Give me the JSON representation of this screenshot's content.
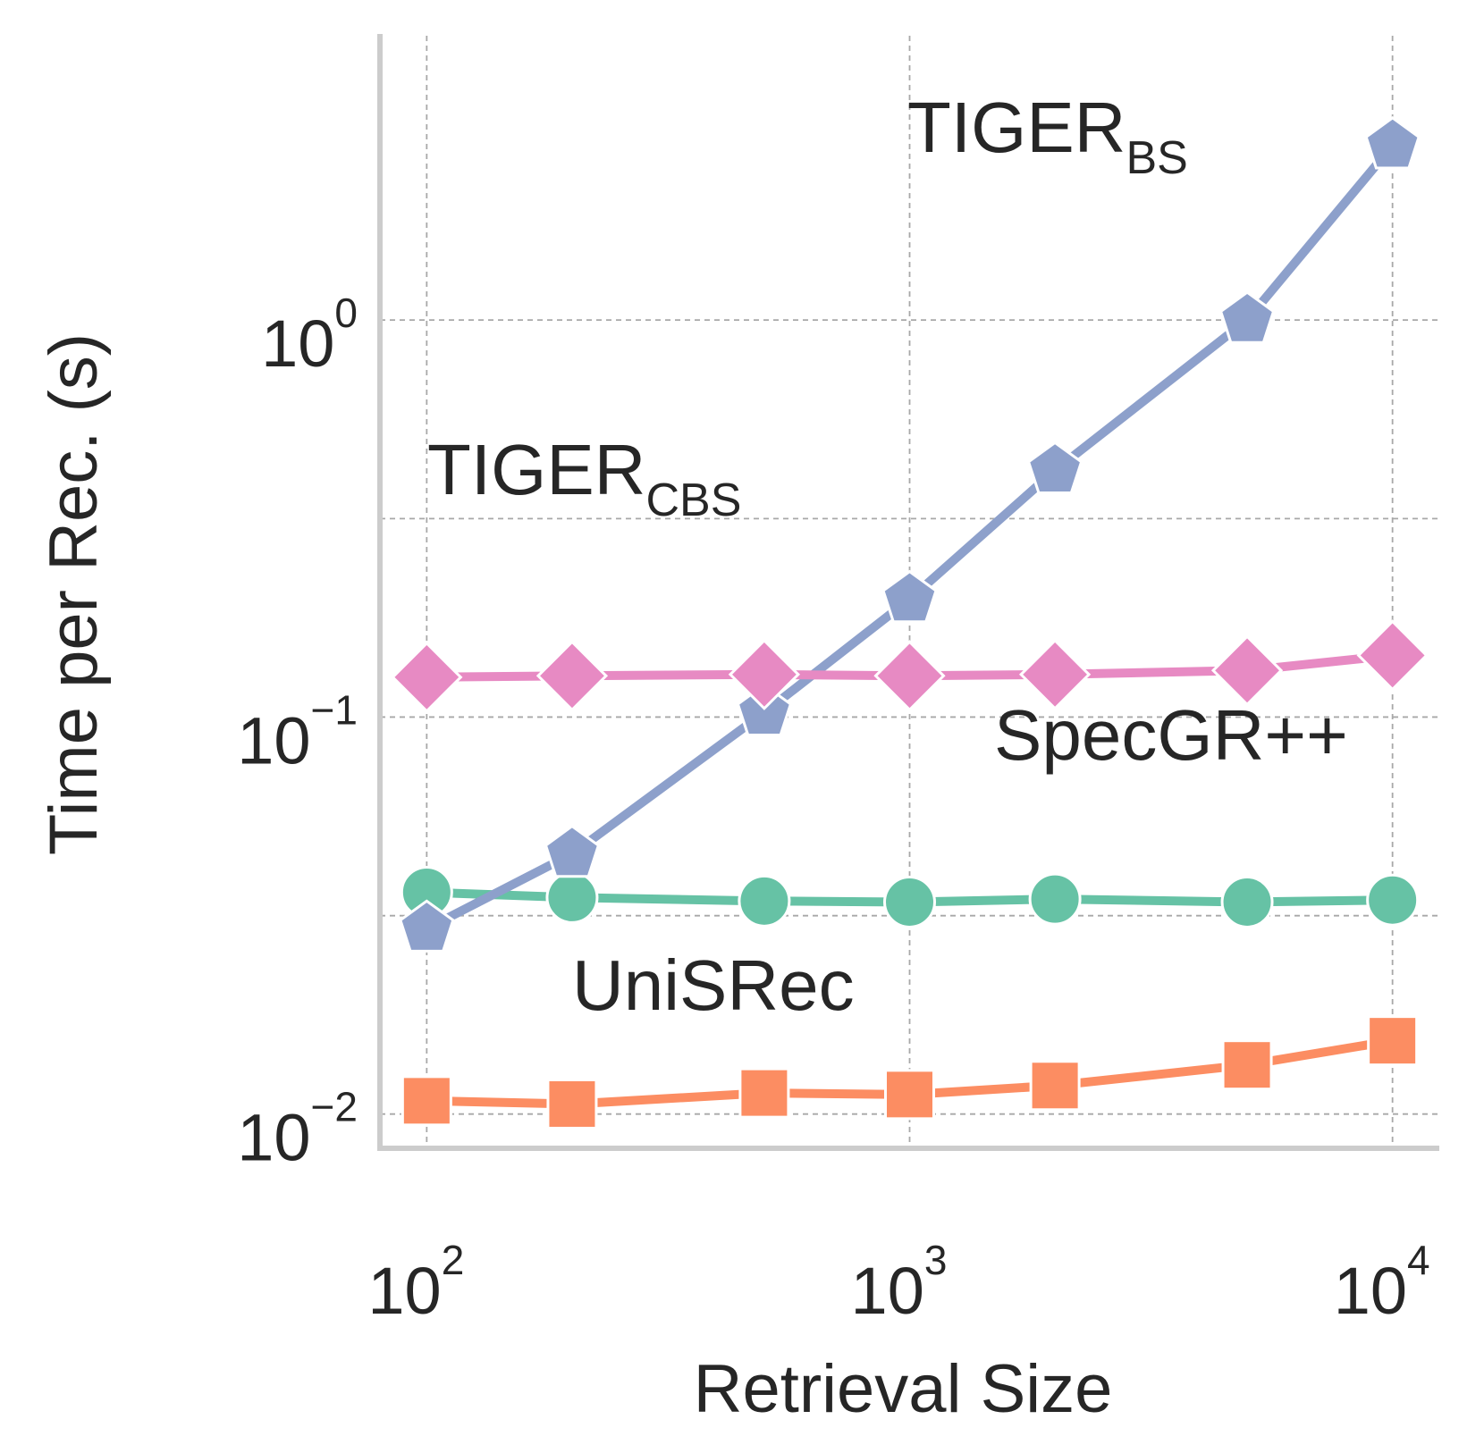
{
  "chart_data": {
    "type": "line",
    "xlabel": "Retrieval Size",
    "ylabel": "Time per Rec. (s)",
    "xscale": "log",
    "yscale": "log",
    "xlim": [
      80,
      12500
    ],
    "ylim": [
      0.0082,
      5.2
    ],
    "grid": true,
    "grid_style": "dashed",
    "x": [
      100,
      200,
      500,
      1000,
      2000,
      5000,
      10000
    ],
    "xticks": [
      {
        "base": "10",
        "exp": "2",
        "value": 100
      },
      {
        "base": "10",
        "exp": "3",
        "value": 1000
      },
      {
        "base": "10",
        "exp": "4",
        "value": 10000
      }
    ],
    "yticks": [
      {
        "base": "10",
        "exp": "−2",
        "value": 0.01
      },
      {
        "base": "10",
        "exp": "−1",
        "value": 0.1
      },
      {
        "base": "10",
        "exp": "0",
        "value": 1
      }
    ],
    "series": [
      {
        "name": "TIGER_BS",
        "label_main": "TIGER",
        "label_sub": "BS",
        "color": "#8da0cb",
        "marker": "pentagon",
        "values": [
          0.0293,
          0.0452,
          0.1026,
          0.198,
          0.418,
          1.0,
          2.75
        ]
      },
      {
        "name": "TIGER_CBS",
        "label_main": "TIGER",
        "label_sub": "CBS",
        "color": "#e78ac3",
        "marker": "diamond",
        "values": [
          0.126,
          0.127,
          0.128,
          0.127,
          0.128,
          0.131,
          0.143
        ]
      },
      {
        "name": "SpecGR++",
        "label_main": "SpecGR++",
        "label_sub": "",
        "color": "#66c2a5",
        "marker": "circle",
        "values": [
          0.0362,
          0.0351,
          0.0344,
          0.0342,
          0.0348,
          0.0342,
          0.0346
        ]
      },
      {
        "name": "UniSRec",
        "label_main": "UniSRec",
        "label_sub": "",
        "color": "#fc8d62",
        "marker": "square",
        "values": [
          0.0108,
          0.0106,
          0.0113,
          0.0112,
          0.0118,
          0.0133,
          0.0153
        ]
      }
    ]
  }
}
